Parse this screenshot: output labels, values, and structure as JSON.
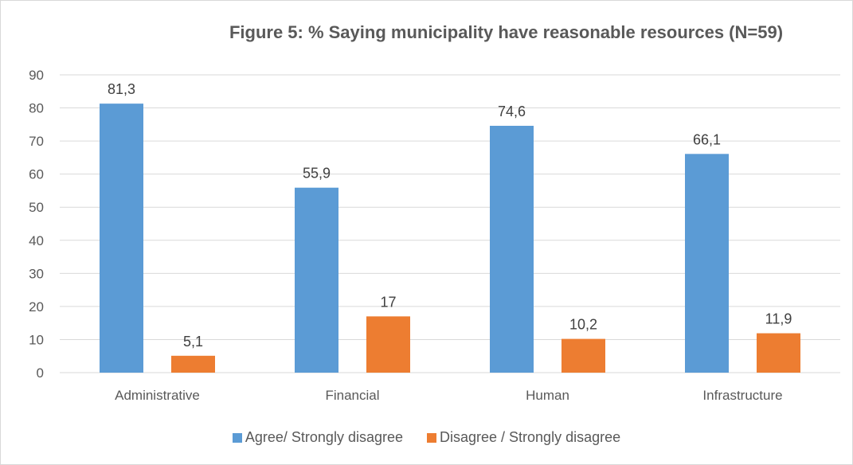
{
  "chart_data": {
    "type": "bar",
    "title": "Figure 5: % Saying municipality have reasonable resources (N=59)",
    "categories": [
      "Administrative",
      "Financial",
      "Human",
      "Infrastructure"
    ],
    "series": [
      {
        "name": "Agree/ Strongly disagree",
        "values": [
          81.3,
          55.9,
          74.6,
          66.1
        ],
        "labels": [
          "81,3",
          "55,9",
          "74,6",
          "66,1"
        ],
        "color": "#5b9bd5"
      },
      {
        "name": "Disagree / Strongly disagree",
        "values": [
          5.1,
          17,
          10.2,
          11.9
        ],
        "labels": [
          "5,1",
          "17",
          "10,2",
          "11,9"
        ],
        "color": "#ed7d31"
      }
    ],
    "yticks": [
      "0",
      "10",
      "20",
      "30",
      "40",
      "50",
      "60",
      "70",
      "80",
      "90"
    ],
    "ylim": [
      0,
      90
    ],
    "grid": true,
    "legend_position": "bottom"
  }
}
